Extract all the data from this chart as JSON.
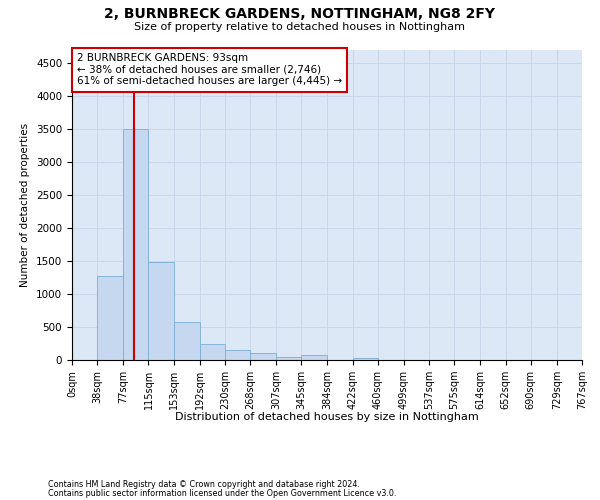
{
  "title": "2, BURNBRECK GARDENS, NOTTINGHAM, NG8 2FY",
  "subtitle": "Size of property relative to detached houses in Nottingham",
  "xlabel": "Distribution of detached houses by size in Nottingham",
  "ylabel": "Number of detached properties",
  "bin_edges": [
    0,
    38,
    77,
    115,
    153,
    192,
    230,
    268,
    307,
    345,
    384,
    422,
    460,
    499,
    537,
    575,
    614,
    652,
    690,
    729,
    767
  ],
  "bar_heights": [
    0,
    1280,
    3500,
    1480,
    580,
    250,
    150,
    100,
    50,
    80,
    0,
    30,
    0,
    0,
    0,
    0,
    0,
    0,
    0,
    0
  ],
  "bar_color": "#c5d8f0",
  "bar_edge_color": "#7aafd4",
  "grid_color": "#c8d8ea",
  "bg_color": "#dce8f5",
  "property_line_x": 93,
  "property_line_color": "#cc0000",
  "annotation_line1": "2 BURNBRECK GARDENS: 93sqm",
  "annotation_line2": "← 38% of detached houses are smaller (2,746)",
  "annotation_line3": "61% of semi-detached houses are larger (4,445) →",
  "annotation_box_color": "#cc0000",
  "ylim": [
    0,
    4700
  ],
  "yticks": [
    0,
    500,
    1000,
    1500,
    2000,
    2500,
    3000,
    3500,
    4000,
    4500
  ],
  "footnote1": "Contains HM Land Registry data © Crown copyright and database right 2024.",
  "footnote2": "Contains public sector information licensed under the Open Government Licence v3.0."
}
